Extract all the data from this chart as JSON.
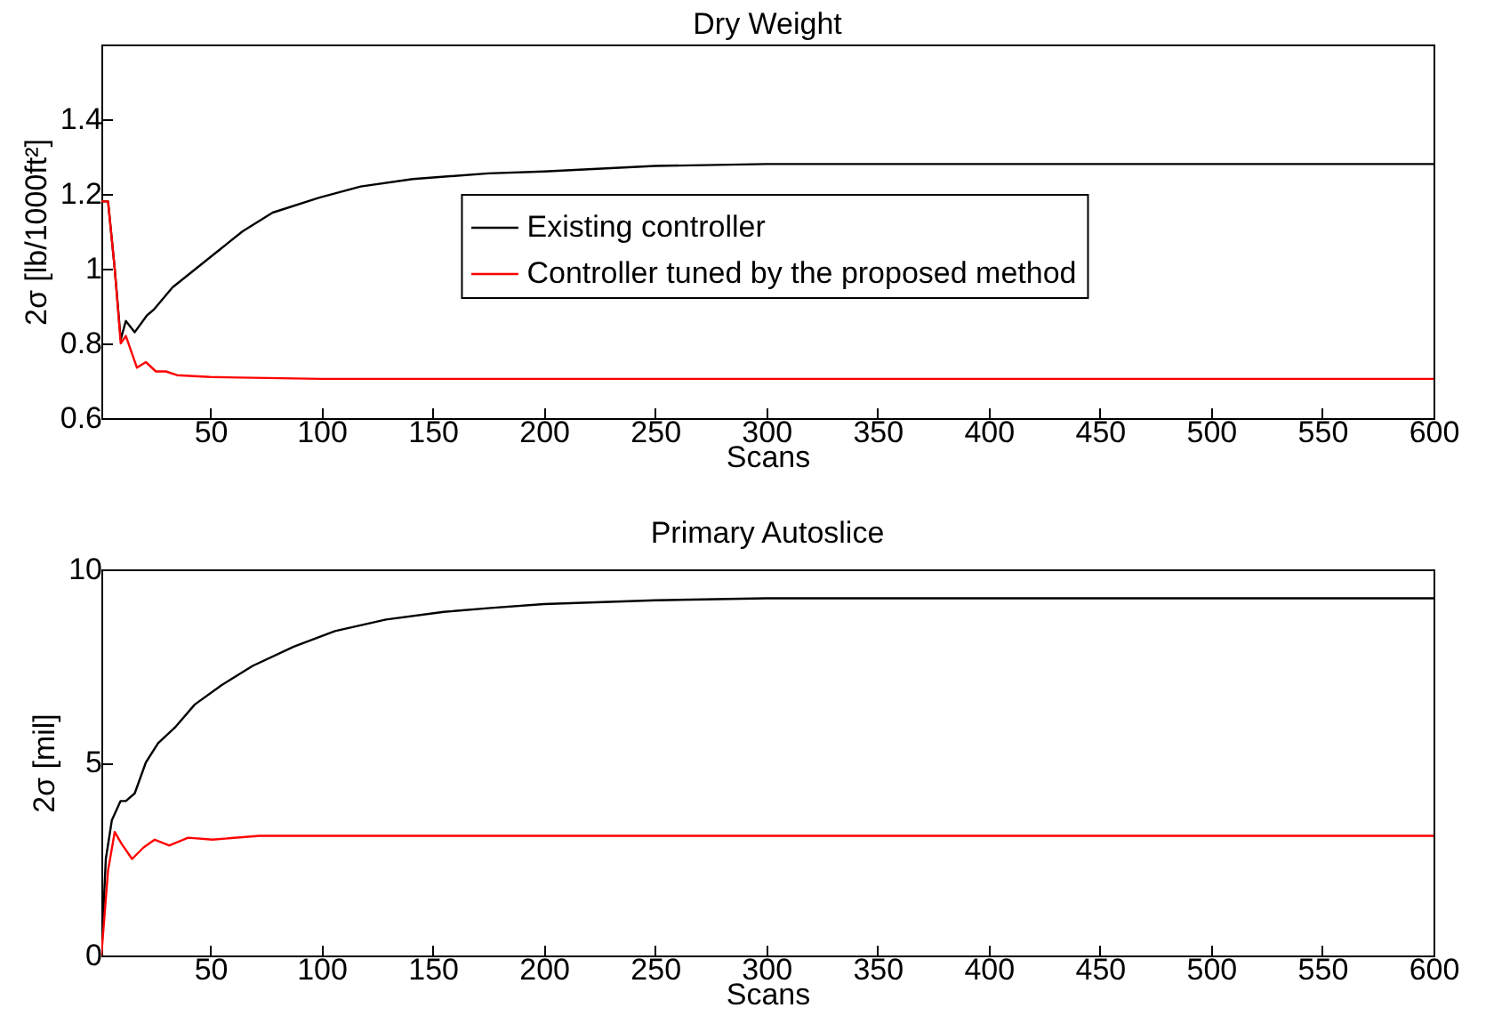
{
  "chart_data": [
    {
      "type": "line",
      "title": "Dry Weight",
      "xlabel": "Scans",
      "ylabel": "2σ [lb/1000ft²]",
      "xlim": [
        1,
        600
      ],
      "xticks": [
        50,
        100,
        150,
        200,
        250,
        300,
        350,
        400,
        450,
        500,
        550,
        600
      ],
      "ylim": [
        0.6,
        1.6
      ],
      "yticks": [
        0.6,
        0.8,
        1,
        1.2,
        1.4
      ],
      "legend": "right",
      "grid": false,
      "series": [
        {
          "name": "Existing controller",
          "color": "#000000",
          "x": [
            1,
            4,
            7,
            9.7,
            12,
            16,
            21.5,
            24.5,
            33,
            43.5,
            54,
            64.5,
            78,
            99,
            117.6,
            141,
            175,
            200,
            250,
            300,
            400,
            600
          ],
          "values": [
            1.18,
            1.18,
            1,
            0.81,
            0.86,
            0.83,
            0.875,
            0.89,
            0.95,
            1,
            1.05,
            1.1,
            1.15,
            1.19,
            1.22,
            1.24,
            1.255,
            1.26,
            1.275,
            1.28,
            1.28,
            1.28
          ]
        },
        {
          "name": "Controller tuned by the proposed method",
          "color": "#ff0000",
          "x": [
            1,
            4,
            7,
            9.7,
            12,
            17,
            21,
            25.5,
            30,
            35,
            50,
            100,
            600
          ],
          "values": [
            1.18,
            1.18,
            1,
            0.8,
            0.82,
            0.735,
            0.75,
            0.725,
            0.725,
            0.715,
            0.71,
            0.705,
            0.705
          ]
        }
      ]
    },
    {
      "type": "line",
      "title": "Primary Autoslice",
      "xlabel": "Scans",
      "ylabel": "2σ [mil]",
      "xlim": [
        1,
        600
      ],
      "xticks": [
        50,
        100,
        150,
        200,
        250,
        300,
        350,
        400,
        450,
        500,
        550,
        600
      ],
      "ylim": [
        0,
        10
      ],
      "yticks": [
        0,
        5,
        10
      ],
      "legend": "right",
      "grid": false,
      "series": [
        {
          "name": "Existing controller",
          "color": "#000000",
          "x": [
            1,
            3,
            5.7,
            9.6,
            12,
            16,
            21,
            26.5,
            34,
            43,
            55,
            69,
            87.5,
            106,
            129,
            155,
            176,
            200,
            250,
            300,
            400,
            600
          ],
          "values": [
            0,
            2.5,
            3.5,
            4,
            4,
            4.2,
            5,
            5.5,
            5.9,
            6.5,
            7,
            7.5,
            8,
            8.4,
            8.7,
            8.9,
            9,
            9.1,
            9.2,
            9.25,
            9.25,
            9.25
          ]
        },
        {
          "name": "Controller tuned by the proposed method",
          "color": "#ff0000",
          "x": [
            1,
            4,
            7,
            10,
            14.8,
            20,
            25,
            31.5,
            40,
            51,
            72,
            100,
            600
          ],
          "values": [
            0,
            2.2,
            3.2,
            2.9,
            2.5,
            2.8,
            3,
            2.85,
            3.05,
            3,
            3.1,
            3.1,
            3.1
          ]
        }
      ]
    }
  ]
}
